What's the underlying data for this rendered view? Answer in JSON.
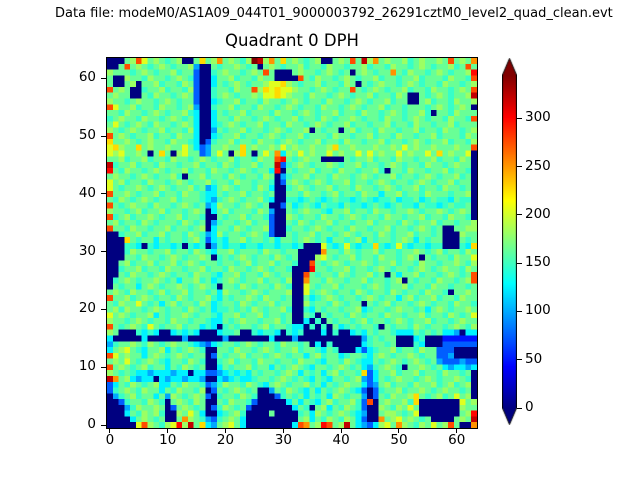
{
  "figure": {
    "data_file_label": "Data file: modeM0/AS1A09_044T01_9000003792_26291cztM0_level2_quad_clean.evt",
    "background_color": "#ffffff"
  },
  "chart_data": {
    "type": "heatmap",
    "title": "Quadrant 0 DPH",
    "xlabel": "",
    "ylabel": "",
    "grid_size": 64,
    "x_range": [
      -0.5,
      63.5
    ],
    "y_range": [
      -0.5,
      63.5
    ],
    "x_ticks": [
      0,
      10,
      20,
      30,
      40,
      50,
      60
    ],
    "y_ticks": [
      0,
      10,
      20,
      30,
      40,
      50,
      60
    ],
    "colormap": "jet",
    "vmin": 0,
    "vmax": 345,
    "colorbar": {
      "ticks": [
        0,
        50,
        100,
        150,
        200,
        250,
        300
      ],
      "extend": "both"
    },
    "value_levels": [
      0,
      25,
      50,
      75,
      100,
      125,
      148,
      165,
      182,
      205,
      228,
      252,
      276,
      300,
      322,
      345
    ],
    "matrix_encoding": "each row is 64 hex chars (x=0..63 left to right); counts value = value_levels[parseInt(char,16)]; rows listed top-to-bottom i.e. y=63 first, y=0 last",
    "matrix": [
      "00078c9787678007a78b78768fe8b7a78767800787c7e8b787786787787c787b",
      "007c787678767784007677876707876778677687767786776877678 7677867c",
      "877767876778677300678776787c70007877678767078767 7b7687767876778d",
      "70087768776787630057786776877000 0c7687767876778677677867 7768776c",
      "700780778677687300576787677899a8767786776870767877678767 76877678",
      "c787006778677683006776877c8a9a9987767876 77c7678767786776 8776787c",
      "787700768776787300678767 78799a987768776787677867768700767876778e",
      "877678776787677300567786776877678767768776787677867700786 7768778",
      "c9778677687767840067786776877678767768776787677867767776 78767870",
      "7768776787677865005767786777687767876778677687767876778607768777",
      "678776877678767500577687767876778677687677876776877678767768776c",
      "7976787687767875005678767786776877678767786776778677687767786777",
      "8767876778677685004767786776787677807677078677687767786776877678",
      "c78767786776877500567786776787677867776877677867768776778 6777687",
      "a77876787768776503677867768776787677867768776778677678767786 7768",
      "9a877a78778779753477877a787787978778778a778777877879787787778 77c",
      "989778707a70897734797 08a70797b58797877978779797877978779 7a787790",
      "7786778677687767876778677687 7cd76787700007677867768776778677687 0",
      "e677867768776778677687677867 7e3678767787677867767876776877678770",
      "d76877678767786776877678767 75d07677867768776778607768776 77867760",
      "787767876778607786776876776870467786776877678767786776787677867 0",
      "9786776877678767786776877677603787678767786776787677678767786770",
      "9767787678767786745787677687500678767786776877678767786776877670",
      "c77876778677687765576778677670077687767867768775778677687776 7780",
      "7687678767786777654678767786500665676567665676566756675676657660",
      "c7678776877678767458776787670037567657665766567656766576656766 70",
      "8776786778677678705786777687400767877657786776877677876778767870",
      "c678677876778677600767786776300876776877678767768776778677687760",
      "7867768767776876704677678677300768767786776778677768767786776778",
      "c77687767786776780577687677830067767876776877677867767876700 7788",
      "0067786778677687645867767876300767786776787677687677867767000877",
      "000a767757677678635657786776757767876757767857677678757677000767",
      "0006650656656065604656656656656656000965696566a65696566566000 65a",
      "000687767786776876577867776877677 0000b776876778677677876 78677687",
      "000776877678767787067678767768767 000897677867768776787 0767768779",
      "00786778677867876776776786778677600c7678767787677867768776 778768",
      "006778677687767786776877678767 76000d77677867767876776787 67877687",
      "007687767876776877657786776876 7700c7677687677867075778677678767c",
      "067876778767577867567876778677680 0b77687767786776780767 76877678c",
      "0767757876778767876077687677687600976778677767876778677687767767",
      "7876877678677867767587767876777800967876776876776876776877607787",
      "c77867876776876778657677876877670075678767767876775786778677687 7",
      "768779767578677687567768767786770086776876770767867767876 7768776",
      "7868776787677687675667676876778600657677677856776787767578767787",
      "978767785767787677657786778677670076076776876776877677867 7687679",
      "8776787677687767765576787767786700506076776786776787677867767877",
      "c767876976778677565067677678677655060607567677607677687677678768",
      "8700065650056565000566700656650656000506005657677655576767554055",
      "5000005000000400000040000000500040000000000046767700056000222222",
      "4677876876787765435677678767768776705060000056776700065000333333",
      "5789765778576787600776877678767786776576000535677867768773330000",
      "c978775787678767703767786776787677578677567765787677876773340000",
      "7879767876577687600678677687767768776577687655767876787674333433",
      "c787678677576876700576778677576787657767876754678760778767545545",
      "8767655455545505533456565767767875767578 6776a35778677867 76877670",
      "eb7854550545545540054565567767876765765776784357678776787 6778760",
      "3576876785576877634687768765787677867576787753478677687786786780",
      "3678768775768776803767876700476876575767876530367786778767877670",
      "046786775748767873067768760003676757675876774037 68778a7678679780",
      "0036776876078768700768776300000575765786 77863c0787786a0000000978",
      "000468778703787670368767300000005760785768763008768797000 0000877",
      "000576878600879750056786000070000675876787654007887679000000078d",
      "0000578767007b87643678750000000007857687 6875300b789787670000787e",
      "000009c87689d8e7a5478975000000005cb78dc78e75435897b87687978c700b"
    ]
  },
  "axes": {
    "x_tick_labels": [
      "0",
      "10",
      "20",
      "30",
      "40",
      "50",
      "60"
    ],
    "y_tick_labels": [
      "0",
      "10",
      "20",
      "30",
      "40",
      "50",
      "60"
    ],
    "colorbar_tick_labels": [
      "0",
      "50",
      "100",
      "150",
      "200",
      "250",
      "300"
    ]
  }
}
